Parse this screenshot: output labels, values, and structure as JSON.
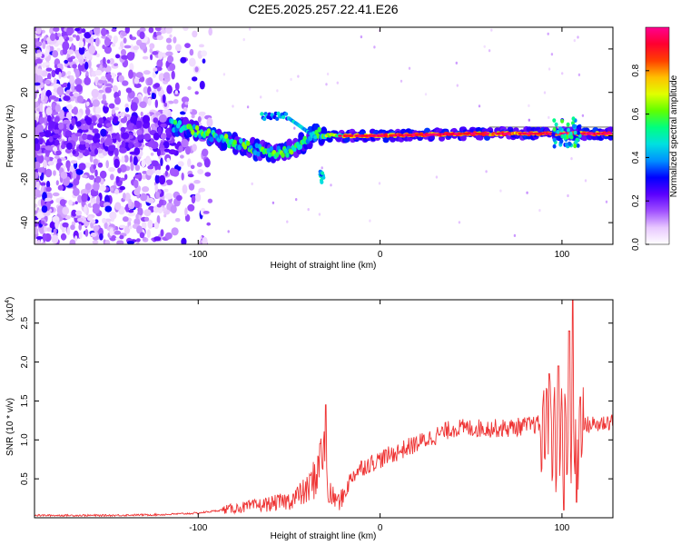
{
  "figure_title": "C2E5.2025.257.22.41.E26",
  "chart_data": [
    {
      "type": "heatmap",
      "title": "C2E5.2025.257.22.41.E26",
      "xlabel": "Height of straight line (km)",
      "ylabel": "Frequency (Hz)",
      "xlim": [
        -190,
        128
      ],
      "ylim": [
        -50,
        50
      ],
      "xticks": [
        -100,
        0,
        100
      ],
      "yticks": [
        -40,
        -20,
        0,
        20,
        40
      ],
      "grid": false,
      "colorbar": {
        "label": "Normalized spectral amplitude",
        "range": [
          0,
          1
        ],
        "ticks": [
          "0.0",
          "0.2",
          "0.4",
          "0.6",
          "0.8"
        ],
        "colormap": [
          "#ffffff",
          "#e8c8ff",
          "#a050ff",
          "#5a00ff",
          "#0000ff",
          "#0090ff",
          "#00e0e0",
          "#00ff80",
          "#60ff00",
          "#e0ff00",
          "#ffc000",
          "#ff4000",
          "#ff0030",
          "#ff0090"
        ]
      },
      "features": [
        {
          "name": "broadband noise region",
          "x_range": [
            -190,
            -105
          ],
          "y_range": [
            -50,
            50
          ],
          "amplitude": 0.15
        },
        {
          "name": "main carrier track",
          "points": [
            [
              -115,
              5
            ],
            [
              -100,
              2
            ],
            [
              -85,
              -2
            ],
            [
              -70,
              -6
            ],
            [
              -60,
              -8
            ],
            [
              -50,
              -7
            ],
            [
              -40,
              -2
            ],
            [
              -35,
              1
            ],
            [
              -25,
              0
            ],
            [
              0,
              0
            ],
            [
              50,
              1
            ],
            [
              100,
              1
            ],
            [
              128,
              1
            ]
          ],
          "amplitude": 0.9
        },
        {
          "name": "upper branch",
          "x_range": [
            -65,
            -50
          ],
          "frequency": 9,
          "amplitude": 0.45
        },
        {
          "name": "lower spot",
          "x": -32,
          "frequency": -19,
          "amplitude": 0.45
        },
        {
          "name": "late excursion",
          "x_range": [
            95,
            110
          ],
          "y_range": [
            -5,
            8
          ],
          "amplitude": 0.55
        }
      ]
    },
    {
      "type": "line",
      "xlabel": "Height of straight line (km)",
      "ylabel": "SNR (10 * v/v)",
      "yscale_label": "(x10",
      "yscale_exp": "4",
      "yscale_close": ")",
      "xlim": [
        -190,
        128
      ],
      "ylim": [
        0,
        2.8
      ],
      "xticks": [
        -100,
        0,
        100
      ],
      "yticks": [
        "0.5",
        "1.0",
        "1.5",
        "2.0",
        "2.5"
      ],
      "grid": false,
      "series": [
        {
          "name": "SNR",
          "color": "#ee3333",
          "envelope_x": [
            -190,
            -150,
            -120,
            -100,
            -80,
            -60,
            -50,
            -40,
            -35,
            -32,
            -28,
            -22,
            -15,
            -10,
            -5,
            0,
            10,
            20,
            30,
            40,
            50,
            60,
            70,
            80,
            88,
            95,
            100,
            105,
            110,
            115,
            120,
            128
          ],
          "envelope_y": [
            0.03,
            0.03,
            0.04,
            0.06,
            0.12,
            0.18,
            0.22,
            0.35,
            0.55,
            1.0,
            0.3,
            0.2,
            0.55,
            0.65,
            0.7,
            0.75,
            0.85,
            0.95,
            1.05,
            1.15,
            1.15,
            1.15,
            1.15,
            1.18,
            1.2,
            1.15,
            1.0,
            1.2,
            1.15,
            1.2,
            1.2,
            1.25
          ],
          "spikes": [
            [
              -30,
              1.45
            ],
            [
              -28,
              0.2
            ],
            [
              -33,
              0.95
            ],
            [
              93,
              1.85
            ],
            [
              98,
              1.95
            ],
            [
              101,
              0.1
            ],
            [
              104,
              2.4
            ],
            [
              106,
              2.8
            ],
            [
              108,
              0.2
            ],
            [
              110,
              1.55
            ]
          ]
        }
      ]
    }
  ]
}
